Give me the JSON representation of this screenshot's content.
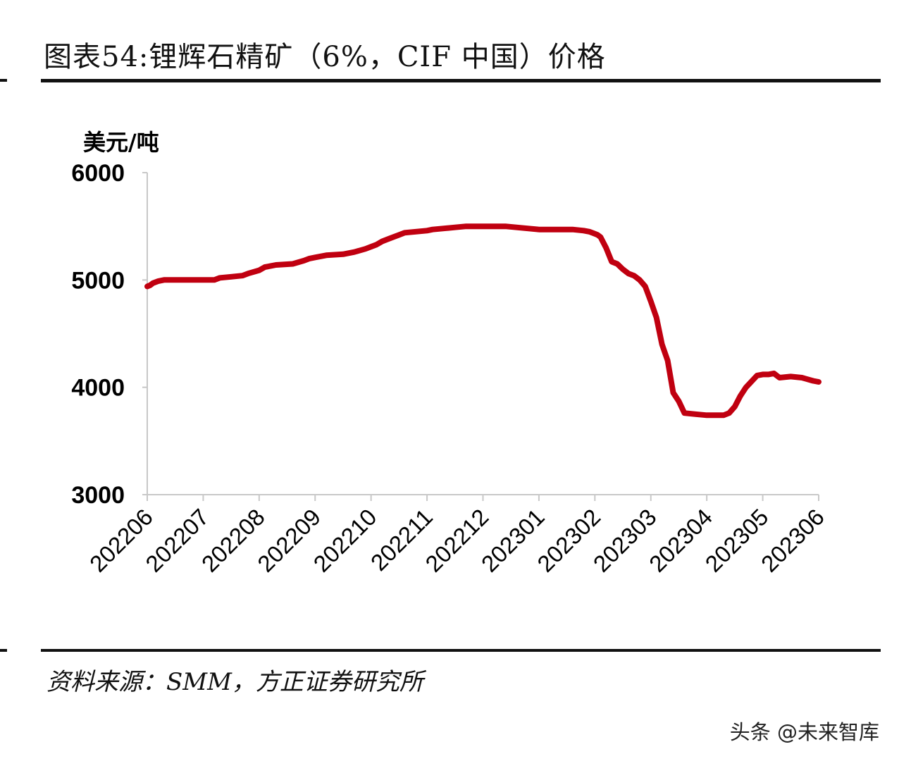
{
  "title": "图表54:锂辉石精矿（6%，CIF 中国）价格",
  "source": "资料来源：SMM，方正证券研究所",
  "watermark": "头条 @未来智库",
  "colors": {
    "series": "#c00010",
    "axis": "#c8c8c8",
    "rule": "#111111"
  },
  "chart_data": {
    "type": "line",
    "title": "锂辉石精矿（6%，CIF 中国）价格",
    "ylabel": "美元/吨",
    "xlabel": "",
    "ylim": [
      3000,
      6000
    ],
    "yticks": [
      3000,
      4000,
      5000,
      6000
    ],
    "ytick_labels": [
      "3000",
      "4000",
      "5000",
      "6000"
    ],
    "x_categories": [
      "202206",
      "202207",
      "202208",
      "202209",
      "202210",
      "202211",
      "202212",
      "202301",
      "202302",
      "202303",
      "202304",
      "202305",
      "202306"
    ],
    "grid": false,
    "legend": "none",
    "series": [
      {
        "name": "锂辉石精矿（6%，CIF 中国）价格",
        "x_months": [
          0.0,
          0.05,
          0.1,
          0.2,
          0.3,
          0.5,
          1.0,
          1.2,
          1.3,
          1.5,
          1.7,
          1.8,
          2.0,
          2.1,
          2.3,
          2.6,
          2.8,
          2.9,
          3.0,
          3.2,
          3.5,
          3.7,
          3.9,
          4.0,
          4.1,
          4.2,
          4.3,
          4.4,
          4.5,
          4.6,
          4.8,
          5.0,
          5.1,
          5.3,
          5.5,
          5.7,
          5.9,
          6.0,
          6.2,
          6.4,
          6.6,
          6.8,
          7.0,
          7.2,
          7.4,
          7.6,
          7.8,
          7.9,
          8.0,
          8.05,
          8.1,
          8.2,
          8.3,
          8.4,
          8.5,
          8.6,
          8.7,
          8.8,
          8.9,
          9.0,
          9.1,
          9.2,
          9.3,
          9.4,
          9.5,
          9.6,
          9.8,
          10.0,
          10.2,
          10.3,
          10.4,
          10.5,
          10.6,
          10.7,
          10.9,
          11.0,
          11.1,
          11.2,
          11.3,
          11.5,
          11.7,
          11.9,
          12.0
        ],
        "values": [
          4940,
          4950,
          4970,
          4990,
          5000,
          5000,
          5000,
          5000,
          5020,
          5030,
          5040,
          5060,
          5090,
          5120,
          5140,
          5150,
          5180,
          5200,
          5210,
          5230,
          5240,
          5260,
          5290,
          5310,
          5330,
          5360,
          5380,
          5400,
          5420,
          5440,
          5450,
          5460,
          5470,
          5480,
          5490,
          5500,
          5500,
          5500,
          5500,
          5500,
          5490,
          5480,
          5470,
          5470,
          5470,
          5470,
          5460,
          5450,
          5430,
          5420,
          5400,
          5300,
          5170,
          5150,
          5100,
          5060,
          5040,
          5000,
          4940,
          4800,
          4650,
          4400,
          4250,
          3950,
          3870,
          3760,
          3750,
          3740,
          3740,
          3740,
          3760,
          3820,
          3920,
          4000,
          4110,
          4120,
          4120,
          4130,
          4090,
          4100,
          4090,
          4060,
          4050
        ]
      }
    ]
  }
}
